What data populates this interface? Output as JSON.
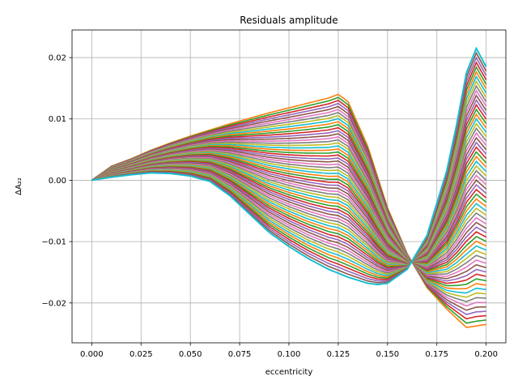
{
  "chart_data": {
    "type": "line",
    "title": "Residuals amplitude",
    "xlabel": "eccentricity",
    "ylabel": "ΔA₂₂",
    "xlim": [
      -0.01,
      0.21
    ],
    "ylim": [
      -0.0265,
      0.0245
    ],
    "x_ticks": [
      "0.000",
      "0.025",
      "0.050",
      "0.075",
      "0.100",
      "0.125",
      "0.150",
      "0.175",
      "0.200"
    ],
    "x_tick_values": [
      0.0,
      0.025,
      0.05,
      0.075,
      0.1,
      0.125,
      0.15,
      0.175,
      0.2
    ],
    "y_ticks": [
      "0.02",
      "0.01",
      "0.00",
      "−0.01",
      "−0.02"
    ],
    "y_tick_values": [
      0.02,
      0.01,
      0.0,
      -0.01,
      -0.02
    ],
    "grid": true,
    "series_count": 60,
    "colors": [
      "#ff7f0e",
      "#2ca02c",
      "#d62728",
      "#9467bd",
      "#8c564b",
      "#e377c2",
      "#7f7f7f",
      "#bcbd22",
      "#17becf"
    ],
    "front_color": "#17becf",
    "series_first": {
      "x": [
        0.0,
        0.01,
        0.02,
        0.03,
        0.04,
        0.05,
        0.06,
        0.07,
        0.08,
        0.09,
        0.1,
        0.11,
        0.12,
        0.125,
        0.13,
        0.14,
        0.15,
        0.16,
        0.17,
        0.18,
        0.19,
        0.2
      ],
      "y": [
        0.0,
        0.0023,
        0.0035,
        0.0049,
        0.0061,
        0.0072,
        0.0082,
        0.0092,
        0.0101,
        0.011,
        0.0118,
        0.0126,
        0.0134,
        0.014,
        0.0128,
        0.0055,
        -0.0045,
        -0.012,
        -0.0175,
        -0.021,
        -0.024,
        -0.0235
      ]
    },
    "series_last": {
      "x": [
        0.0,
        0.01,
        0.02,
        0.03,
        0.04,
        0.05,
        0.06,
        0.07,
        0.08,
        0.09,
        0.1,
        0.11,
        0.12,
        0.13,
        0.14,
        0.145,
        0.15,
        0.16,
        0.17,
        0.18,
        0.185,
        0.19,
        0.195,
        0.2
      ],
      "y": [
        0.0,
        0.0005,
        0.0009,
        0.0012,
        0.0011,
        0.0007,
        -0.0002,
        -0.0025,
        -0.0055,
        -0.0085,
        -0.0108,
        -0.0128,
        -0.0145,
        -0.0158,
        -0.0168,
        -0.017,
        -0.0168,
        -0.0145,
        -0.009,
        0.0015,
        0.009,
        0.0175,
        0.0215,
        0.0185
      ]
    }
  }
}
